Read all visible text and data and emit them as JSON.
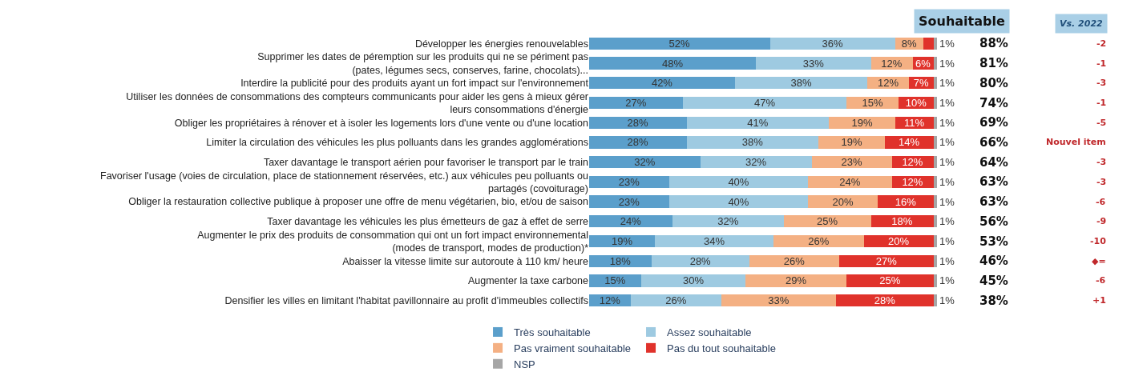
{
  "chart_data": {
    "type": "bar",
    "orientation": "horizontal",
    "stacked": true,
    "categories": [
      "Développer les énergies renouvelables",
      "Supprimer les dates de péremption sur les produits qui ne se périment pas\n(pates, légumes secs, conserves, farine, chocolats)...",
      "Interdire la publicité pour des produits ayant un fort impact sur l'environnement",
      "Utiliser les données de consommations des compteurs communicants pour aider les gens à mieux gérer\nleurs consommations d'énergie",
      "Obliger les propriétaires à rénover et à isoler les logements lors d'une vente ou d'une location",
      "Limiter la circulation des véhicules les plus polluants dans les grandes agglomérations",
      "Taxer davantage le transport aérien pour favoriser le transport par le train",
      "Favoriser l'usage (voies de circulation, place de stationnement réservées, etc.) aux véhicules peu polluants ou\npartagés (covoiturage)",
      "Obliger la restauration collective publique à proposer une offre de menu végétarien, bio, et/ou de saison",
      "Taxer davantage les véhicules les plus émetteurs de gaz à effet de serre",
      "Augmenter le prix des produits de consommation qui ont un fort impact environnemental\n(modes de transport, modes de production)*",
      "Abaisser la vitesse limite sur autoroute à 110 km/ heure",
      "Augmenter la taxe carbone",
      "Densifier les villes en limitant l'habitat pavillonnaire au profit d'immeubles collectifs"
    ],
    "series": [
      {
        "name": "Très souhaitable",
        "color": "#5b9fcb",
        "values": [
          52,
          48,
          42,
          27,
          28,
          28,
          32,
          23,
          23,
          24,
          19,
          18,
          15,
          12
        ],
        "value_labels": [
          "52%",
          "48%",
          "42%",
          "27%",
          "28%",
          "28%",
          "32%",
          "23%",
          "23%",
          "24%",
          "19%",
          "18%",
          "15%",
          "12%"
        ]
      },
      {
        "name": "Assez souhaitable",
        "color": "#9ecae1",
        "values": [
          36,
          33,
          38,
          47,
          41,
          38,
          32,
          40,
          40,
          32,
          34,
          28,
          30,
          26
        ],
        "value_labels": [
          "36%",
          "33%",
          "38%",
          "47%",
          "41%",
          "38%",
          "32%",
          "40%",
          "40%",
          "32%",
          "34%",
          "28%",
          "30%",
          "26%"
        ]
      },
      {
        "name": "Pas vraiment souhaitable",
        "color": "#f4b083",
        "values": [
          8,
          12,
          12,
          15,
          19,
          19,
          23,
          24,
          20,
          25,
          26,
          26,
          29,
          33
        ],
        "value_labels": [
          "8%",
          "12%",
          "12%",
          "15%",
          "19%",
          "19%",
          "23%",
          "24%",
          "20%",
          "25%",
          "26%",
          "26%",
          "29%",
          "33%"
        ]
      },
      {
        "name": "Pas du tout souhaitable",
        "color": "#e0322b",
        "values": [
          3,
          6,
          7,
          10,
          11,
          14,
          12,
          12,
          16,
          18,
          20,
          27,
          25,
          28
        ],
        "value_labels": [
          null,
          "6%",
          "7%",
          "10%",
          "11%",
          "14%",
          "12%",
          "12%",
          "16%",
          "18%",
          "20%",
          "27%",
          "25%",
          "28%"
        ]
      },
      {
        "name": "NSP",
        "color": "#a6a6a6",
        "values": [
          1,
          1,
          1,
          1,
          1,
          1,
          1,
          1,
          1,
          1,
          1,
          1,
          1,
          1
        ],
        "value_labels": [
          "1%",
          "1%",
          "1%",
          "1%",
          "1%",
          "1%",
          "1%",
          "1%",
          "1%",
          "1%",
          "1%",
          "1%",
          "1%",
          "1%"
        ]
      }
    ],
    "xlim": [
      0,
      100
    ],
    "tick_labels": false,
    "legend": "bottom",
    "annotations": [
      "Souhaitable",
      "88%",
      "81%",
      "80%",
      "74%",
      "69%",
      "66%",
      "64%",
      "63%",
      "63%",
      "56%",
      "53%",
      "46%",
      "45%",
      "38%",
      "Vs. 2022",
      "-2",
      "-1",
      "-3",
      "-1",
      "-5",
      "Nouvel item",
      "-3",
      "-3",
      "-6",
      "-9",
      "-10",
      "◆=",
      "-6",
      "+1"
    ]
  }
}
